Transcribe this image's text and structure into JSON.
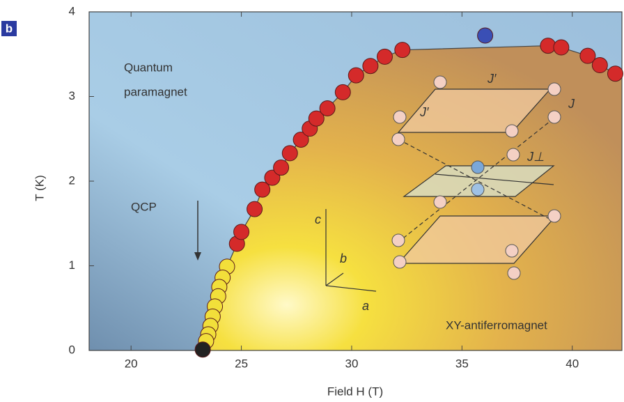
{
  "chart_data": {
    "type": "scatter",
    "panel_label": "b",
    "x_label": "Field H (T)",
    "y_label": "T (K)",
    "annotations": [
      "Quantum",
      "paramagnet",
      "QCP",
      "XY-antiferromagnet"
    ],
    "inset_labels": [
      "J′",
      "J′",
      "J",
      "J⊥",
      "a",
      "b",
      "c"
    ],
    "xlim": [
      18.1,
      42.25
    ],
    "ylim": [
      0,
      4
    ],
    "xticks": [
      20,
      25,
      30,
      35,
      40
    ],
    "yticks": [
      0,
      1,
      2,
      3,
      4
    ],
    "series": [
      {
        "color": "#d42a2a",
        "x": [
          24.8,
          25.0,
          25.6,
          25.95,
          26.4,
          26.8,
          27.2,
          27.7,
          28.1,
          28.4,
          28.9,
          29.6,
          30.2,
          30.85,
          31.5,
          32.3,
          38.9,
          39.5,
          40.7,
          41.25,
          41.95
        ],
        "values": [
          1.26,
          1.4,
          1.67,
          1.9,
          2.04,
          2.16,
          2.33,
          2.49,
          2.62,
          2.74,
          2.86,
          3.05,
          3.25,
          3.36,
          3.47,
          3.55,
          3.6,
          3.58,
          3.48,
          3.37,
          3.27
        ]
      },
      {
        "color": "#3a4fb5",
        "x": [
          36.05
        ],
        "values": [
          3.72
        ]
      },
      {
        "color": "#f2df3a",
        "x": [
          24.35,
          24.15,
          24.0,
          23.95,
          23.8,
          23.7,
          23.6,
          23.5,
          23.4
        ],
        "values": [
          0.99,
          0.86,
          0.75,
          0.64,
          0.52,
          0.4,
          0.29,
          0.19,
          0.11
        ]
      },
      {
        "color": "#222222",
        "x": [
          23.25
        ],
        "values": [
          0.01
        ]
      }
    ]
  }
}
